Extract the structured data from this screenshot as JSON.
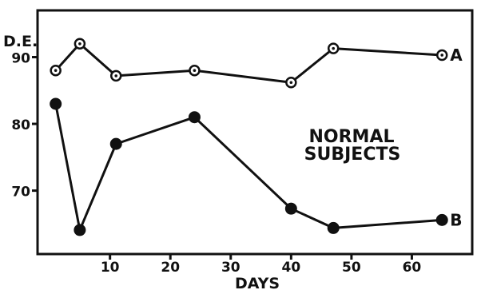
{
  "chart_data": {
    "type": "line",
    "ylabel": "D.E.",
    "xlabel": "DAYS",
    "annotation": [
      "NORMAL",
      "SUBJECTS"
    ],
    "xlim": [
      -2,
      70
    ],
    "ylim": [
      60.5,
      97
    ],
    "xticks": [
      10,
      20,
      30,
      40,
      50,
      60
    ],
    "xtick_labels": [
      "10",
      "20",
      "30",
      "40",
      "50",
      "60"
    ],
    "yticks": [
      70,
      80,
      90
    ],
    "ytick_labels": [
      "70",
      "80",
      "90"
    ],
    "grid": false,
    "series": [
      {
        "name": "A",
        "marker": "open-circle",
        "x": [
          1,
          5,
          11,
          24,
          40,
          47,
          65
        ],
        "y": [
          88,
          92,
          87.2,
          88,
          86.2,
          91.3,
          90.3
        ]
      },
      {
        "name": "B",
        "marker": "filled-circle",
        "x": [
          1,
          5,
          11,
          24,
          40,
          47,
          65
        ],
        "y": [
          83,
          64.1,
          77,
          81,
          67.3,
          64.4,
          65.6
        ]
      }
    ]
  }
}
